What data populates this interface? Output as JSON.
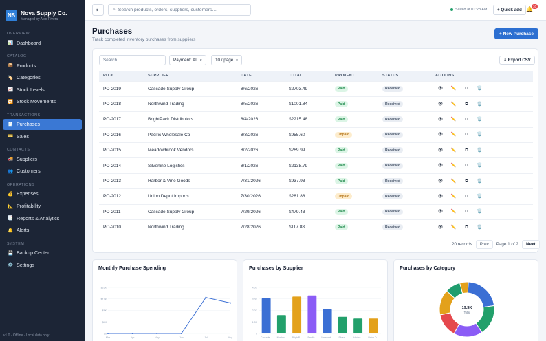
{
  "brand": {
    "logo": "NS",
    "name": "Nova Supply Co.",
    "sub": "Managed by Alex Rivera"
  },
  "sidebar": {
    "sections": [
      {
        "title": "OVERVIEW",
        "items": [
          {
            "icon": "dashboard-icon",
            "glyph": "📊",
            "label": "Dashboard"
          }
        ]
      },
      {
        "title": "CATALOG",
        "items": [
          {
            "icon": "products-icon",
            "glyph": "📦",
            "label": "Products"
          },
          {
            "icon": "categories-icon",
            "glyph": "🏷️",
            "label": "Categories"
          },
          {
            "icon": "stock-levels-icon",
            "glyph": "📈",
            "label": "Stock Levels"
          },
          {
            "icon": "stock-movements-icon",
            "glyph": "🔁",
            "label": "Stock Movements"
          }
        ]
      },
      {
        "title": "TRANSACTIONS",
        "items": [
          {
            "icon": "purchases-icon",
            "glyph": "🧾",
            "label": "Purchases",
            "active": true
          },
          {
            "icon": "sales-icon",
            "glyph": "💳",
            "label": "Sales"
          }
        ]
      },
      {
        "title": "CONTACTS",
        "items": [
          {
            "icon": "suppliers-icon",
            "glyph": "🚚",
            "label": "Suppliers"
          },
          {
            "icon": "customers-icon",
            "glyph": "👥",
            "label": "Customers"
          }
        ]
      },
      {
        "title": "OPERATIONS",
        "items": [
          {
            "icon": "expenses-icon",
            "glyph": "💰",
            "label": "Expenses"
          },
          {
            "icon": "profitability-icon",
            "glyph": "📐",
            "label": "Profitability"
          },
          {
            "icon": "reports-icon",
            "glyph": "📑",
            "label": "Reports & Analytics"
          },
          {
            "icon": "alerts-icon",
            "glyph": "🔔",
            "label": "Alerts"
          }
        ]
      },
      {
        "title": "SYSTEM",
        "items": [
          {
            "icon": "backup-icon",
            "glyph": "💾",
            "label": "Backup Center"
          },
          {
            "icon": "settings-icon",
            "glyph": "⚙️",
            "label": "Settings"
          }
        ]
      }
    ],
    "footer": "v1.0 · Offline · Local data only"
  },
  "topbar": {
    "search_placeholder": "Search products, orders, suppliers, customers…",
    "saved_text": "Saved at 01:28 AM",
    "quick_add": "+ Quick add",
    "notification_count": "10"
  },
  "header": {
    "title": "Purchases",
    "subtitle": "Track completed inventory purchases from suppliers",
    "new_button": "+ New Purchase"
  },
  "toolbar": {
    "search_placeholder": "Search...",
    "payment_filter": "Payment: All",
    "per_page": "10 / page",
    "export": "⬇ Export CSV"
  },
  "table": {
    "columns": [
      "PO #",
      "SUPPLIER",
      "DATE",
      "TOTAL",
      "PAYMENT",
      "STATUS",
      "ACTIONS"
    ],
    "rows": [
      {
        "po": "PO-2019",
        "supplier": "Cascade Supply Group",
        "date": "8/6/2026",
        "total": "$2703.49",
        "payment": "Paid",
        "status": "Received"
      },
      {
        "po": "PO-2018",
        "supplier": "Northwind Trading",
        "date": "8/5/2026",
        "total": "$1001.84",
        "payment": "Paid",
        "status": "Received"
      },
      {
        "po": "PO-2017",
        "supplier": "BrightPack Distributors",
        "date": "8/4/2026",
        "total": "$2215.48",
        "payment": "Paid",
        "status": "Received"
      },
      {
        "po": "PO-2016",
        "supplier": "Pacific Wholesale Co",
        "date": "8/3/2026",
        "total": "$955.60",
        "payment": "Unpaid",
        "status": "Received"
      },
      {
        "po": "PO-2015",
        "supplier": "Meadowbrook Vendors",
        "date": "8/2/2026",
        "total": "$269.99",
        "payment": "Paid",
        "status": "Received"
      },
      {
        "po": "PO-2014",
        "supplier": "Silverline Logistics",
        "date": "8/1/2026",
        "total": "$2138.79",
        "payment": "Paid",
        "status": "Received"
      },
      {
        "po": "PO-2013",
        "supplier": "Harbor & Vine Goods",
        "date": "7/31/2026",
        "total": "$937.93",
        "payment": "Paid",
        "status": "Received"
      },
      {
        "po": "PO-2012",
        "supplier": "Union Depot Imports",
        "date": "7/30/2026",
        "total": "$281.88",
        "payment": "Unpaid",
        "status": "Received"
      },
      {
        "po": "PO-2011",
        "supplier": "Cascade Supply Group",
        "date": "7/29/2026",
        "total": "$479.43",
        "payment": "Paid",
        "status": "Received"
      },
      {
        "po": "PO-2010",
        "supplier": "Northwind Trading",
        "date": "7/28/2026",
        "total": "$117.88",
        "payment": "Paid",
        "status": "Received"
      }
    ],
    "actions": [
      {
        "name": "view-icon",
        "glyph": "👁"
      },
      {
        "name": "edit-icon",
        "glyph": "✏️"
      },
      {
        "name": "duplicate-icon",
        "glyph": "⧉"
      },
      {
        "name": "delete-icon",
        "glyph": "🗑️"
      }
    ]
  },
  "pagination": {
    "records": "20 records",
    "prev": "Prev",
    "page_info": "Page 1 of 2",
    "next": "Next"
  },
  "chart_data": [
    {
      "type": "line",
      "title": "Monthly Purchase Spending",
      "categories": [
        "Mar",
        "Apr",
        "May",
        "Jun",
        "Jul",
        "Aug"
      ],
      "values": [
        0,
        0,
        0,
        0,
        12500,
        10600
      ],
      "ytick_labels": [
        "$0",
        "$4K",
        "$8K",
        "$12K",
        "$16K"
      ],
      "ylim": [
        0,
        16000
      ],
      "color": "#3b6fd4"
    },
    {
      "type": "bar",
      "title": "Purchases by Supplier",
      "categories": [
        "Cascade...",
        "Northw...",
        "BrightP...",
        "Pacific...",
        "Meadowb...",
        "Silverl...",
        "Harbor...",
        "Union D..."
      ],
      "values": [
        3.05,
        1.6,
        3.2,
        3.3,
        2.1,
        1.45,
        1.3,
        1.3
      ],
      "ytick_labels": [
        "0",
        "1.0K",
        "2.0K",
        "3.0K",
        "4.0K"
      ],
      "ylim": [
        0,
        4
      ],
      "colors": [
        "#3b6fd4",
        "#22a06b",
        "#e3a11b",
        "#8b5cf6",
        "#3b6fd4",
        "#22a06b",
        "#22a06b",
        "#e3a11b"
      ]
    },
    {
      "type": "pie",
      "title": "Purchases by Category",
      "center_value": "19.3K",
      "center_label": "Total",
      "values": [
        22,
        18,
        17,
        14,
        15,
        9,
        5
      ],
      "colors": [
        "#3b6fd4",
        "#22a06b",
        "#8b5cf6",
        "#e5484d",
        "#e3a11b",
        "#1f9d6e",
        "#e3a11b"
      ]
    }
  ]
}
